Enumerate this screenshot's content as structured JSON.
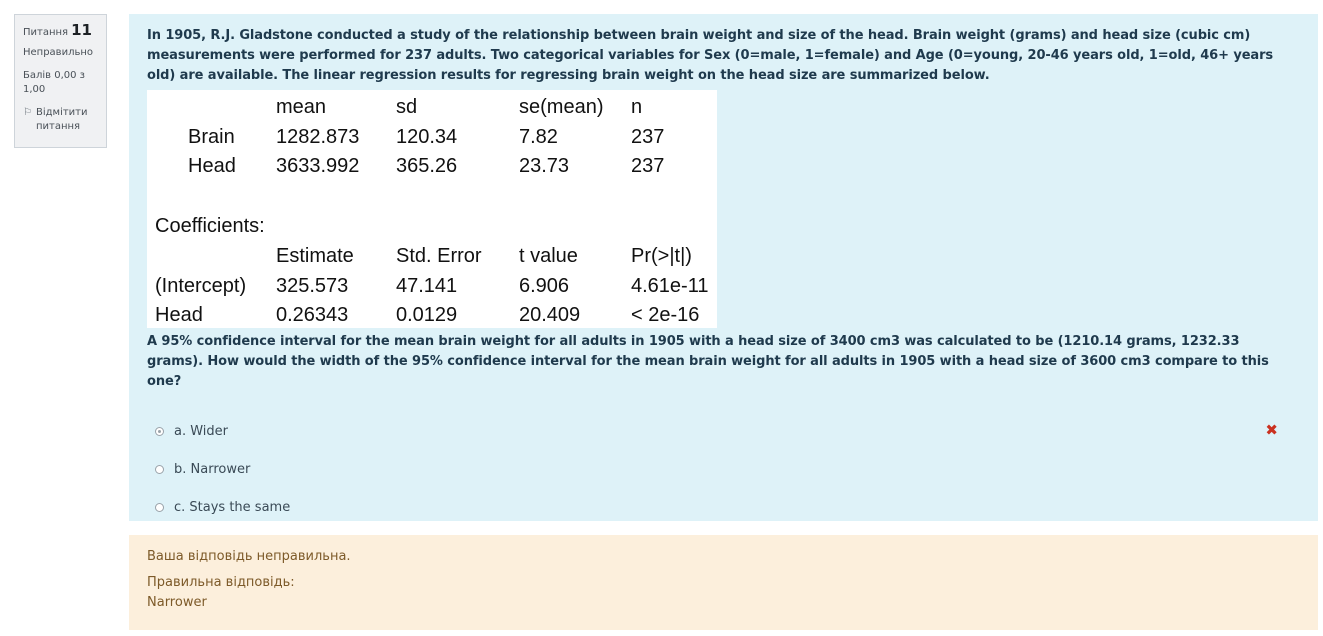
{
  "info": {
    "question_prefix": "Питання",
    "question_number": "11",
    "state": "Неправильно",
    "grade": "Балів 0,00 з 1,00",
    "flag_label": "Відмітити питання",
    "flag_icon": "flag-icon"
  },
  "question": {
    "text": "In 1905, R.J. Gladstone conducted a study of the relationship between brain weight and size of the head. Brain weight (grams) and head size (cubic cm) measurements were performed for 237 adults. Two categorical variables for Sex (0=male, 1=female) and Age (0=young, 20-46 years old, 1=old, 46+ years old) are available. The linear regression results for regressing brain weight on the head size are summarized below.",
    "stats": {
      "summary_headers": [
        "mean",
        "sd",
        "se(mean)",
        "n"
      ],
      "summary_rows": [
        {
          "label": "Brain",
          "values": [
            "1282.873",
            "120.34",
            "7.82",
            "237"
          ]
        },
        {
          "label": "Head",
          "values": [
            "3633.992",
            "365.26",
            "23.73",
            "237"
          ]
        }
      ],
      "coef_title": "Coefficients:",
      "coef_headers": [
        "Estimate",
        "Std. Error",
        "t value",
        "Pr(>|t|)"
      ],
      "coef_rows": [
        {
          "label": "(Intercept)",
          "values": [
            "325.573",
            "47.141",
            "6.906",
            "4.61e-11"
          ]
        },
        {
          "label": "Head",
          "values": [
            "0.26343",
            "0.0129",
            "20.409",
            "< 2e-16"
          ]
        }
      ]
    },
    "text2": "A 95% confidence interval for the mean brain weight for all adults in 1905 with a head size of 3400 cm3 was calculated to be (1210.14 grams, 1232.33 grams). How would the width of the 95% confidence interval for the mean brain weight for all adults in 1905 with a head size of 3600 cm3 compare to this one?"
  },
  "answers": [
    {
      "label": "a. Wider",
      "selected": true,
      "incorrect": true
    },
    {
      "label": "b. Narrower",
      "selected": false
    },
    {
      "label": "c. Stays the same",
      "selected": false
    }
  ],
  "incorrect_icon": "cross-icon",
  "colors": {
    "incorrect": "#ca3120",
    "formulation_bg": "#def2f8",
    "feedback_bg": "#fcefdc"
  },
  "feedback": {
    "result": "Ваша відповідь неправильна.",
    "correct_label": "Правильна відповідь:",
    "correct_answer": "Narrower"
  }
}
